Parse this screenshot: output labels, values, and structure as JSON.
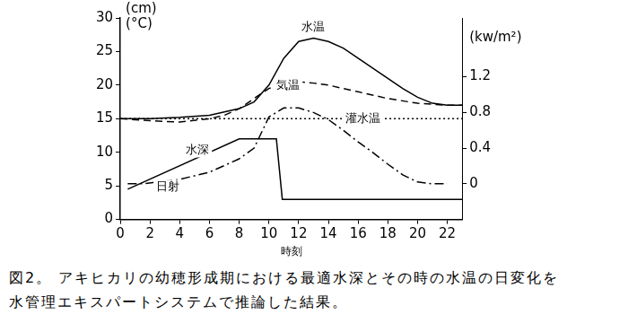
{
  "chart_data": {
    "type": "line",
    "caption": [
      "図2。 アキヒカリの幼穂形成期における最適水深とその時の水温の日変化を",
      "水管理エキスパートシステムで推論した結果。"
    ],
    "x_label": "時刻",
    "y_label": [
      "(cm)",
      "(°C)"
    ],
    "y2_label": "(kw/m²)",
    "xlim": [
      0,
      23
    ],
    "xticks": [
      0,
      2,
      4,
      6,
      8,
      10,
      12,
      14,
      16,
      18,
      20,
      22
    ],
    "ylim": [
      0,
      30
    ],
    "yticks": [
      0,
      5,
      10,
      15,
      20,
      25,
      30
    ],
    "y2lim": [
      -0.4,
      1.86
    ],
    "y2ticks": [
      0,
      0.4,
      0.8,
      1.2
    ],
    "grid": false,
    "series": [
      {
        "name": "水温",
        "color": "#000000",
        "line_style": "solid",
        "x": [
          0,
          2,
          4,
          6,
          8,
          9,
          10,
          11,
          12,
          13,
          14,
          15,
          16,
          17,
          18,
          19,
          20,
          21,
          22,
          23
        ],
        "values": [
          15,
          15,
          15.2,
          15.5,
          16.5,
          17.5,
          20,
          24,
          26.5,
          27,
          26.5,
          25.5,
          24,
          22.5,
          21,
          19.5,
          18.2,
          17.3,
          17,
          17
        ],
        "label_x": 13,
        "label_y": 28.6
      },
      {
        "name": "気温",
        "color": "#000000",
        "line_style": "dashed",
        "x": [
          0,
          2,
          4,
          6,
          7,
          8,
          9,
          10,
          11,
          12,
          13,
          14,
          16,
          18,
          20,
          22,
          23
        ],
        "values": [
          15,
          14.7,
          14.5,
          15,
          15.5,
          16.5,
          18,
          19.5,
          20.2,
          20.5,
          20.3,
          20,
          19,
          18,
          17.3,
          17,
          17
        ],
        "label_x": 11.3,
        "label_y": 19.9
      },
      {
        "name": "灌水温",
        "color": "#000000",
        "line_style": "dotted",
        "x": [
          0,
          23
        ],
        "values": [
          15,
          15
        ],
        "label_x": 16.3,
        "label_y": 15
      },
      {
        "name": "水深",
        "color": "#000000",
        "line_style": "solid",
        "x": [
          0.5,
          8,
          10.5,
          10.9,
          23
        ],
        "values": [
          4.5,
          12,
          12,
          3,
          3
        ],
        "label_x": 5.2,
        "label_y": 10.3
      },
      {
        "name": "日射",
        "color": "#000000",
        "line_style": "dashdot",
        "axis": "y2",
        "x": [
          0.5,
          1.5,
          4,
          6,
          8,
          9,
          10,
          11,
          12,
          13,
          14,
          15,
          16,
          17,
          18,
          19,
          20,
          21,
          22
        ],
        "values": [
          0,
          0,
          0.05,
          0.13,
          0.28,
          0.4,
          0.75,
          0.85,
          0.85,
          0.8,
          0.72,
          0.6,
          0.47,
          0.35,
          0.22,
          0.1,
          0.02,
          0,
          0
        ],
        "label_x": 3.2,
        "label_y": -0.035
      }
    ]
  }
}
